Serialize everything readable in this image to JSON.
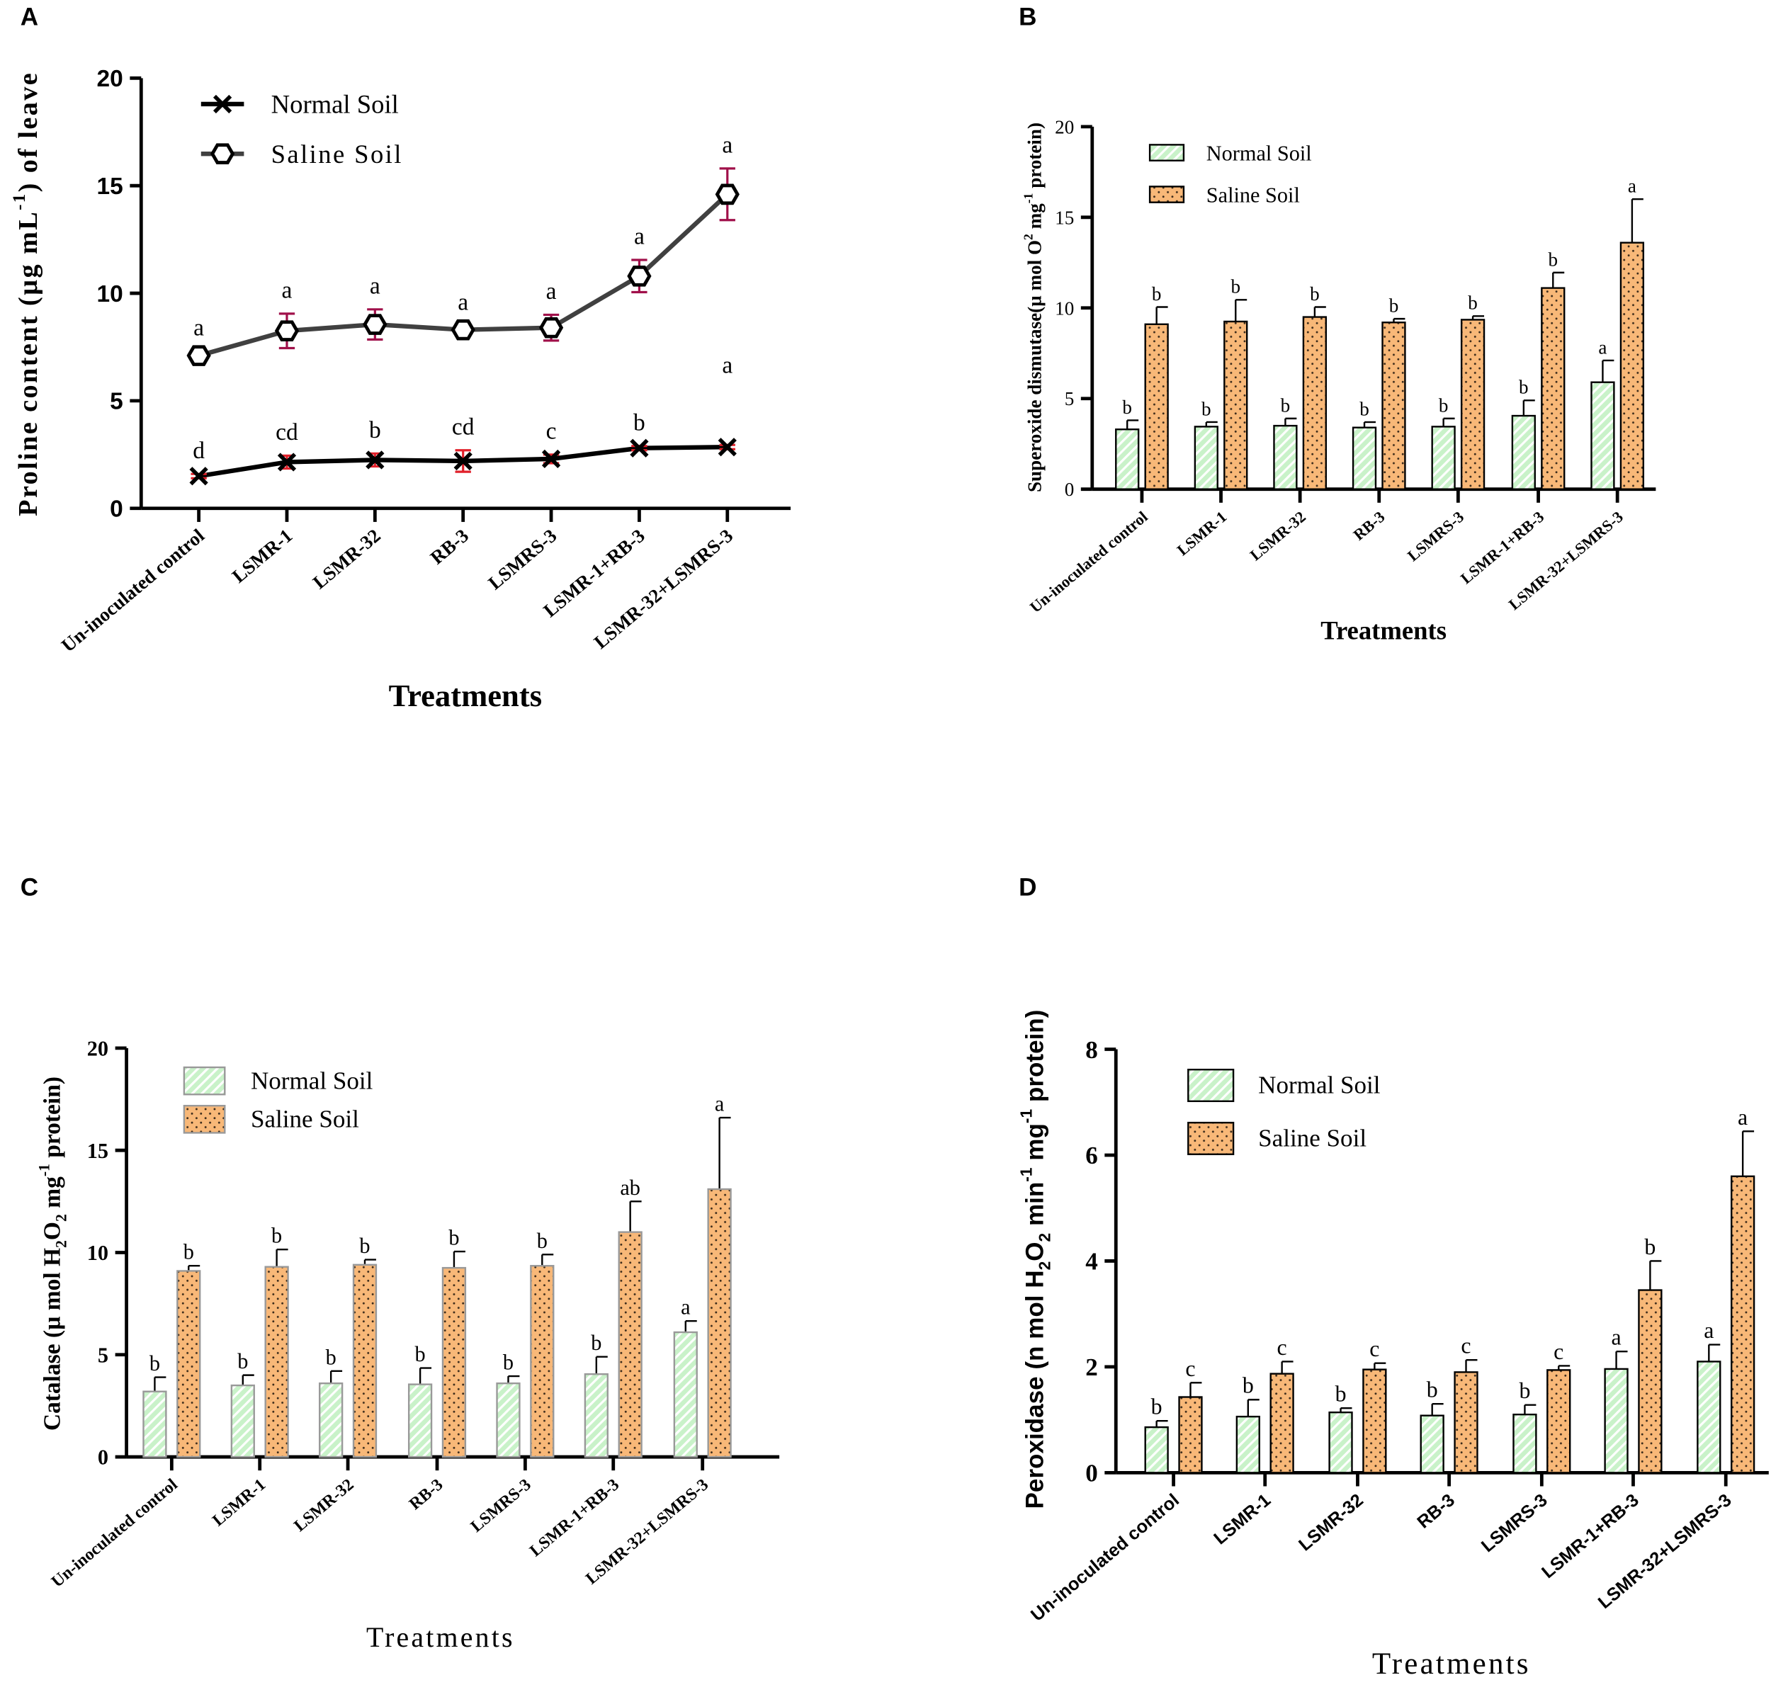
{
  "chart_data": [
    {
      "panel": "A",
      "type": "line",
      "title": "",
      "xlabel": "Treatments",
      "ylabel_parts": [
        {
          "t": "Proline content (µg mL"
        },
        {
          "t": "-1",
          "sup": true
        },
        {
          "t": ") of leave"
        }
      ],
      "ylim": [
        0,
        20
      ],
      "yticks": [
        0,
        5,
        10,
        15,
        20
      ],
      "categories": [
        "Un-inoculated control",
        "LSMR-1",
        "LSMR-32",
        "RB-3",
        "LSMRS-3",
        "LSMR-1+RB-3",
        "LSMR-32+LSMRS-3"
      ],
      "legend_position": "top-left",
      "series": [
        {
          "name": "Normal Soil",
          "marker": "x",
          "values": [
            1.5,
            2.15,
            2.25,
            2.2,
            2.3,
            2.8,
            2.85
          ],
          "errors": [
            0.1,
            0.3,
            0.3,
            0.5,
            0.2,
            0.1,
            0.1
          ],
          "letters": [
            "d",
            "cd",
            "b",
            "cd",
            "c",
            "b",
            "a"
          ],
          "color": "#000000",
          "error_color": "#e0202a"
        },
        {
          "name": "Saline Soil",
          "marker": "hexagon",
          "values": [
            7.1,
            8.25,
            8.55,
            8.3,
            8.4,
            10.8,
            14.6
          ],
          "errors": [
            0.2,
            0.8,
            0.7,
            0.2,
            0.6,
            0.75,
            1.2
          ],
          "letters": [
            "a",
            "a",
            "a",
            "a",
            "a",
            "a",
            "a"
          ],
          "color": "#404040",
          "error_color": "#a0104a"
        }
      ]
    },
    {
      "panel": "B",
      "type": "bar",
      "title": "",
      "xlabel": "Treatments",
      "ylabel_parts": [
        {
          "t": "Superoxide dismutase(µ mol O"
        },
        {
          "t": "2",
          "sup": true
        },
        {
          "t": " mg"
        },
        {
          "t": "-1",
          "sup": true
        },
        {
          "t": " protein)"
        }
      ],
      "ylim": [
        0,
        20
      ],
      "yticks": [
        0,
        5,
        10,
        15,
        20
      ],
      "categories": [
        "Un-inoculated control",
        "LSMR-1",
        "LSMR-32",
        "RB-3",
        "LSMRS-3",
        "LSMR-1+RB-3",
        "LSMR-32+LSMRS-3"
      ],
      "legend_position": "top-left",
      "series": [
        {
          "name": "Normal Soil",
          "values": [
            3.3,
            3.45,
            3.5,
            3.4,
            3.45,
            4.05,
            5.9
          ],
          "errors": [
            0.5,
            0.25,
            0.4,
            0.3,
            0.45,
            0.85,
            1.2
          ],
          "letters": [
            "b",
            "b",
            "b",
            "b",
            "b",
            "b",
            "a"
          ],
          "color": "#c9f2c9"
        },
        {
          "name": "Saline Soil",
          "values": [
            9.1,
            9.25,
            9.5,
            9.2,
            9.35,
            11.1,
            13.6
          ],
          "errors": [
            0.95,
            1.2,
            0.55,
            0.2,
            0.2,
            0.85,
            2.4
          ],
          "letters": [
            "b",
            "b",
            "b",
            "b",
            "b",
            "b",
            "a"
          ],
          "color": "#f8b878"
        }
      ]
    },
    {
      "panel": "C",
      "type": "bar",
      "title": "",
      "xlabel": "Treatments",
      "ylabel_parts": [
        {
          "t": "Catalase (µ mol  H"
        },
        {
          "t": "2",
          "sub": true
        },
        {
          "t": "O"
        },
        {
          "t": "2",
          "sub": true
        },
        {
          "t": " mg"
        },
        {
          "t": "-1",
          "sup": true
        },
        {
          "t": "  protein)"
        }
      ],
      "ylim": [
        0,
        20
      ],
      "yticks": [
        0,
        5,
        10,
        15,
        20
      ],
      "categories": [
        "Un-inoculated control",
        "LSMR-1",
        "LSMR-32",
        "RB-3",
        "LSMRS-3",
        "LSMR-1+RB-3",
        "LSMR-32+LSMRS-3"
      ],
      "legend_position": "top-left",
      "series": [
        {
          "name": "Normal Soil",
          "values": [
            3.2,
            3.5,
            3.6,
            3.55,
            3.6,
            4.05,
            6.1
          ],
          "errors": [
            0.7,
            0.5,
            0.6,
            0.8,
            0.35,
            0.85,
            0.55
          ],
          "letters": [
            "b",
            "b",
            "b",
            "b",
            "b",
            "b",
            "a"
          ],
          "color": "#c9f2c9"
        },
        {
          "name": "Saline Soil",
          "values": [
            9.1,
            9.3,
            9.4,
            9.25,
            9.35,
            11.0,
            13.1
          ],
          "errors": [
            0.25,
            0.85,
            0.25,
            0.8,
            0.55,
            1.5,
            3.5
          ],
          "letters": [
            "b",
            "b",
            "b",
            "b",
            "b",
            "ab",
            "a"
          ],
          "color": "#f8b878"
        }
      ]
    },
    {
      "panel": "D",
      "type": "bar",
      "title": "",
      "xlabel": "Treatments",
      "ylabel_parts": [
        {
          "t": "Peroxidase  (n mol H"
        },
        {
          "t": "2",
          "sub": true
        },
        {
          "t": "O"
        },
        {
          "t": "2",
          "sub": true
        },
        {
          "t": " min"
        },
        {
          "t": "-1",
          "sup": true
        },
        {
          "t": " mg"
        },
        {
          "t": "-1",
          "sup": true
        },
        {
          "t": "  protein)"
        }
      ],
      "ylim": [
        0,
        8
      ],
      "yticks": [
        0,
        2,
        4,
        6,
        8
      ],
      "categories": [
        "Un-inoculated control",
        "LSMR-1",
        "LSMR-32",
        "RB-3",
        "LSMRS-3",
        "LSMR-1+RB-3",
        "LSMR-32+LSMRS-3"
      ],
      "legend_position": "top-left",
      "series": [
        {
          "name": "Normal Soil",
          "values": [
            0.86,
            1.06,
            1.14,
            1.08,
            1.1,
            1.96,
            2.1
          ],
          "errors": [
            0.12,
            0.32,
            0.08,
            0.22,
            0.18,
            0.33,
            0.32
          ],
          "letters": [
            "b",
            "b",
            "b",
            "b",
            "b",
            "a",
            "a"
          ],
          "color": "#c9f2c9"
        },
        {
          "name": "Saline Soil",
          "values": [
            1.43,
            1.87,
            1.95,
            1.9,
            1.94,
            3.45,
            5.6
          ],
          "errors": [
            0.27,
            0.23,
            0.12,
            0.23,
            0.08,
            0.55,
            0.85
          ],
          "letters": [
            "c",
            "c",
            "c",
            "c",
            "c",
            "b",
            "a"
          ],
          "color": "#f8b878"
        }
      ]
    }
  ]
}
